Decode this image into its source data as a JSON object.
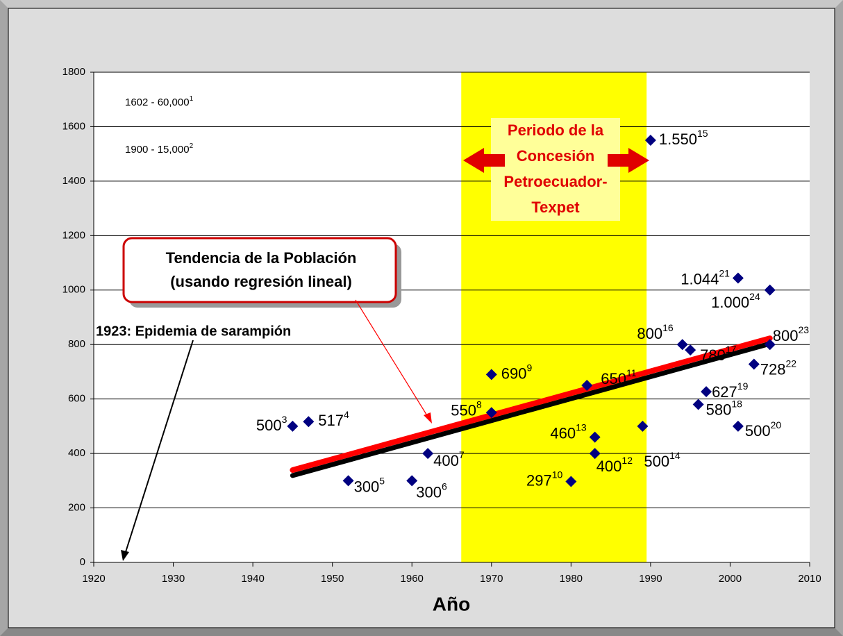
{
  "chart_data": {
    "type": "scatter",
    "xlabel": "Año",
    "xlim": [
      1920,
      2010
    ],
    "xticks": [
      1920,
      1930,
      1940,
      1950,
      1960,
      1970,
      1980,
      1990,
      2000,
      2010
    ],
    "ylim": [
      0,
      1800
    ],
    "yticks": [
      0,
      200,
      400,
      600,
      800,
      1000,
      1200,
      1400,
      1600,
      1800
    ],
    "grid": true,
    "x": [
      1945,
      1947,
      1952,
      1960,
      1962,
      1970,
      1970,
      1980,
      1982,
      1983,
      1983,
      1989,
      1990,
      1994,
      1995,
      1996,
      1997,
      2001,
      2001,
      2003,
      2005,
      2005
    ],
    "values": [
      500,
      517,
      300,
      300,
      400,
      550,
      690,
      297,
      650,
      400,
      460,
      500,
      1550,
      800,
      780,
      580,
      627,
      500,
      1044,
      728,
      800,
      1000
    ],
    "value_labels": [
      "500",
      "517",
      "300",
      "300",
      "400",
      "550",
      "690",
      "297",
      "650",
      "400",
      "460",
      "500",
      "1.550",
      "800",
      "780",
      "580",
      "627",
      "500",
      "1.044",
      "728",
      "800",
      "1.000"
    ],
    "label_notes": [
      "3",
      "4",
      "5",
      "6",
      "7",
      "8",
      "9",
      "10",
      "11",
      "12",
      "13",
      "14",
      "15",
      "16",
      "17",
      "18",
      "19",
      "20",
      "21",
      "22",
      "23",
      "24"
    ],
    "color": "#000080",
    "trend_lines": [
      {
        "color": "#000000",
        "x": [
          1945,
          2005
        ],
        "values": [
          319,
          803
        ]
      },
      {
        "color": "#ff0000",
        "x": [
          1945,
          2005
        ],
        "values": [
          339,
          823
        ]
      }
    ],
    "highlight": {
      "x": [
        1966.2,
        1989.5
      ],
      "color": "#ffff00"
    },
    "annotations": {
      "early_1": {
        "text": "1602 - 60,000",
        "note": "1"
      },
      "early_2": {
        "text": "1900 - 15,000",
        "note": "2"
      },
      "epidemic": "1923: Epidemia de sarampión",
      "period": [
        "Periodo de la",
        "Concesión",
        "Petroecuador-",
        "Texpet"
      ],
      "trend": [
        "Tendencia de la Población",
        "(usando regresión lineal)"
      ]
    }
  }
}
